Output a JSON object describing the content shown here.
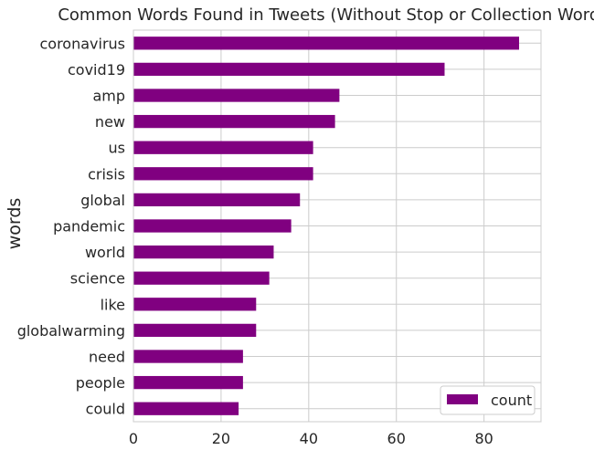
{
  "chart_data": {
    "type": "bar",
    "orientation": "horizontal",
    "title": "Common Words Found in Tweets (Without Stop or Collection Words)",
    "xlabel": "",
    "ylabel": "words",
    "categories": [
      "coronavirus",
      "covid19",
      "amp",
      "new",
      "us",
      "crisis",
      "global",
      "pandemic",
      "world",
      "science",
      "like",
      "globalwarming",
      "need",
      "people",
      "could"
    ],
    "series": [
      {
        "name": "count",
        "values": [
          88,
          71,
          47,
          46,
          41,
          41,
          38,
          36,
          32,
          31,
          28,
          28,
          25,
          25,
          24
        ]
      }
    ],
    "xlim": [
      0,
      93
    ],
    "xticks": [
      0,
      20,
      40,
      60,
      80
    ],
    "grid": true,
    "legend_position": "lower-right",
    "bar_color": "#800080"
  }
}
